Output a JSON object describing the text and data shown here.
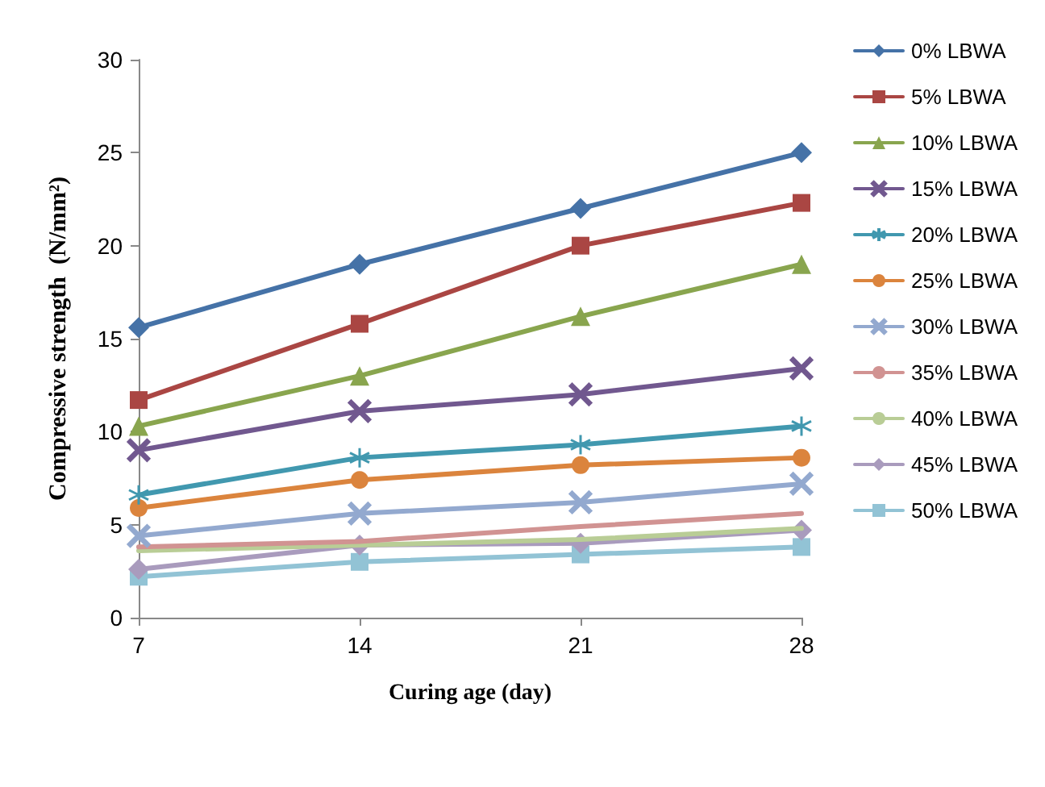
{
  "chart_data": {
    "type": "line",
    "xlabel": "Curing age (day)",
    "ylabel": "Compressive strength  (N/mm²)",
    "x": [
      7,
      14,
      21,
      28
    ],
    "xlim": [
      7,
      28
    ],
    "xticks": [
      7,
      14,
      21,
      28
    ],
    "ylim": [
      0,
      30
    ],
    "yticks": [
      0,
      5,
      10,
      15,
      20,
      25,
      30
    ],
    "grid": false,
    "legend": "right",
    "line_style": "solid",
    "series": [
      {
        "name": "0% LBWA",
        "color": "#4572a7",
        "marker": "diamond",
        "values": [
          15.6,
          19,
          22,
          25
        ]
      },
      {
        "name": "5% LBWA",
        "color": "#aa4643",
        "marker": "square",
        "values": [
          11.7,
          15.8,
          20,
          22.3
        ]
      },
      {
        "name": "10% LBWA",
        "color": "#89a54e",
        "marker": "triangle",
        "values": [
          10.3,
          13,
          16.2,
          19
        ]
      },
      {
        "name": "15% LBWA",
        "color": "#71588f",
        "marker": "cross",
        "values": [
          9,
          11.1,
          12,
          13.4
        ]
      },
      {
        "name": "20% LBWA",
        "color": "#4198af",
        "marker": "star",
        "values": [
          6.6,
          8.6,
          9.3,
          10.3
        ]
      },
      {
        "name": "25% LBWA",
        "color": "#db843d",
        "marker": "circle",
        "values": [
          5.9,
          7.4,
          8.2,
          8.6
        ]
      },
      {
        "name": "30% LBWA",
        "color": "#93a9cf",
        "marker": "cross",
        "values": [
          4.4,
          5.6,
          6.2,
          7.2
        ]
      },
      {
        "name": "35% LBWA",
        "color": "#d19392",
        "marker": "none",
        "values": [
          3.8,
          4.1,
          4.9,
          5.6
        ]
      },
      {
        "name": "40% LBWA",
        "color": "#b9cd96",
        "marker": "none",
        "values": [
          3.6,
          3.9,
          4.2,
          4.8
        ]
      },
      {
        "name": "45% LBWA",
        "color": "#a99bbd",
        "marker": "diamond",
        "values": [
          2.6,
          3.9,
          4,
          4.7
        ]
      },
      {
        "name": "50% LBWA",
        "color": "#92c3d5",
        "marker": "square",
        "values": [
          2.2,
          3,
          3.4,
          3.8
        ]
      }
    ]
  }
}
